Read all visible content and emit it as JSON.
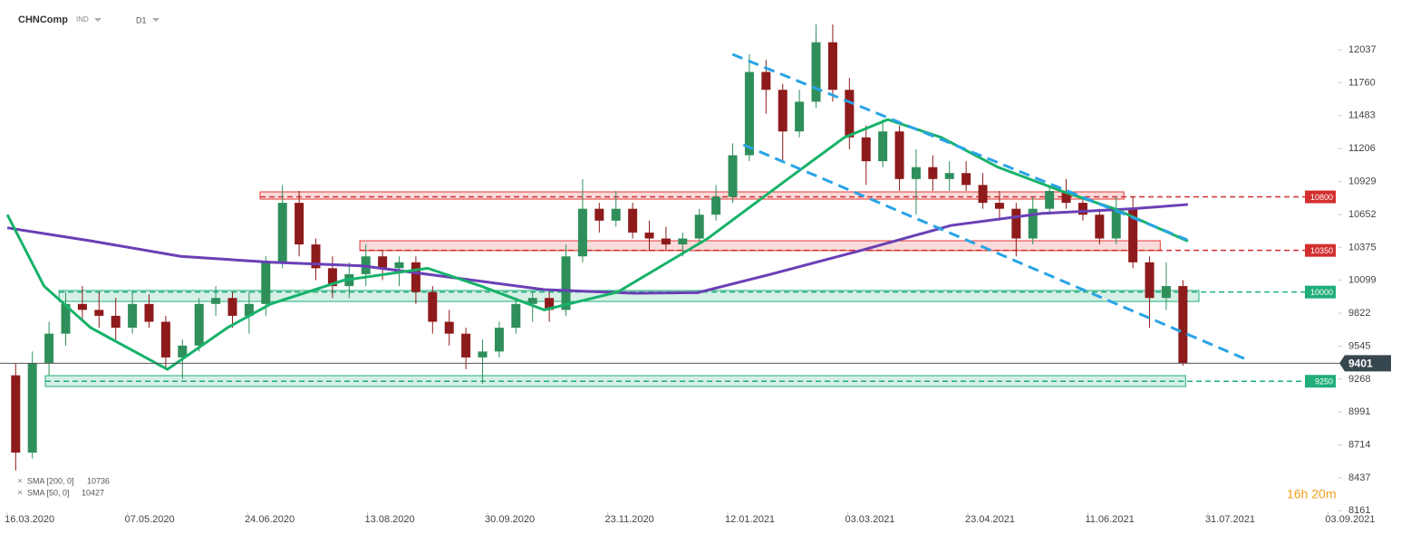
{
  "chart_data": {
    "type": "candlestick",
    "title": "CHNComp",
    "subtitle": "IND",
    "timeframe": "D1",
    "timer": "16h 20m",
    "xlim": [
      -2.2,
      398.6
    ],
    "xticks": [
      {
        "value": 0,
        "label": "16.03.2020"
      },
      {
        "value": 36,
        "label": "07.05.2020"
      },
      {
        "value": 72,
        "label": "24.06.2020"
      },
      {
        "value": 108,
        "label": "13.08.2020"
      },
      {
        "value": 144,
        "label": "30.09.2020"
      },
      {
        "value": 180,
        "label": "23.11.2020"
      },
      {
        "value": 216,
        "label": "12.01.2021"
      },
      {
        "value": 252,
        "label": "03.03.2021"
      },
      {
        "value": 288,
        "label": "23.04.2021"
      },
      {
        "value": 324,
        "label": "11.06.2021"
      },
      {
        "value": 360,
        "label": "31.07.2021"
      },
      {
        "value": 396,
        "label": "03.09.2021"
      }
    ],
    "ylim": [
      8156,
      12303
    ],
    "yticks": [
      12037,
      11760,
      11483,
      11206,
      10929,
      10652,
      10375,
      10099,
      9822,
      9545,
      9268,
      8991,
      8714,
      8437,
      8161
    ],
    "up_color": "#2f8f5b",
    "down_color": "#8e1b1b",
    "candles": {
      "x": [
        2.5,
        7.5,
        12.5,
        17.5,
        22.5,
        27.5,
        32.5,
        37.5,
        42.5,
        47.5,
        52.5,
        57.5,
        62.5,
        67.5,
        72.5,
        77.5,
        82.5,
        87.5,
        92.5,
        97.5,
        102.5,
        107.5,
        112.5,
        117.5,
        122.5,
        127.5,
        132.5,
        137.5,
        142.5,
        147.5,
        152.5,
        157.5,
        162.5,
        167.5,
        172.5,
        177.5,
        182.5,
        187.5,
        192.5,
        197.5,
        202.5,
        207.5,
        212.5,
        217.5,
        222.5,
        227.5,
        232.5,
        237.5,
        242.5,
        247.5,
        252.5,
        257.5,
        262.5,
        267.5,
        272.5,
        277.5,
        282.5,
        287.5,
        292.5,
        297.5,
        302.5,
        307.5,
        312.5,
        317.5,
        322.5,
        327.5,
        332.5,
        337.5,
        342.5,
        347.5,
        352.5
      ],
      "open": [
        9300,
        8650,
        9400,
        9650,
        9900,
        9850,
        9800,
        9700,
        9900,
        9750,
        9450,
        9550,
        9900,
        9950,
        9800,
        9900,
        10250,
        10750,
        10400,
        10200,
        10050,
        10150,
        10300,
        10200,
        10250,
        10000,
        9750,
        9650,
        9450,
        9500,
        9700,
        9900,
        9950,
        9850,
        10300,
        10700,
        10600,
        10700,
        10500,
        10450,
        10400,
        10450,
        10650,
        10800,
        11150,
        11850,
        11700,
        11350,
        11600,
        12100,
        11700,
        11300,
        11100,
        11350,
        10950,
        11050,
        10950,
        11000,
        10900,
        10750,
        10700,
        10450,
        10700,
        10850,
        10750,
        10650,
        10450,
        10700,
        10250,
        9950,
        10050
      ],
      "high": [
        9400,
        9500,
        9750,
        10000,
        10050,
        10000,
        9950,
        10000,
        9980,
        9800,
        9600,
        9950,
        10050,
        10000,
        10000,
        10300,
        10900,
        10850,
        10450,
        10300,
        10250,
        10400,
        10350,
        10300,
        10300,
        10050,
        9850,
        9700,
        9600,
        9750,
        9950,
        10000,
        10000,
        10400,
        10950,
        10750,
        10850,
        10750,
        10600,
        10550,
        10500,
        10700,
        10900,
        11250,
        12000,
        11950,
        11750,
        11700,
        12250,
        12250,
        11800,
        11400,
        11450,
        11400,
        11200,
        11150,
        11100,
        11100,
        11000,
        10850,
        10750,
        10800,
        10900,
        10950,
        10800,
        10700,
        10800,
        10800,
        10300,
        10250,
        10100
      ],
      "low": [
        8500,
        8600,
        9300,
        9550,
        9750,
        9700,
        9600,
        9650,
        9700,
        9350,
        9270,
        9500,
        9800,
        9700,
        9650,
        9800,
        10200,
        10300,
        10100,
        9950,
        9950,
        10050,
        10100,
        10050,
        9900,
        9650,
        9550,
        9350,
        9230,
        9450,
        9650,
        9750,
        9750,
        9800,
        10250,
        10500,
        10550,
        10450,
        10350,
        10350,
        10300,
        10400,
        10600,
        10750,
        11100,
        11500,
        11100,
        11300,
        11550,
        11600,
        11200,
        10900,
        11050,
        10850,
        10650,
        10850,
        10850,
        10850,
        10700,
        10600,
        10300,
        10400,
        10650,
        10700,
        10600,
        10400,
        10400,
        10200,
        9700,
        9850,
        9380
      ],
      "close": [
        8650,
        9400,
        9650,
        9900,
        9850,
        9800,
        9700,
        9900,
        9750,
        9450,
        9550,
        9900,
        9950,
        9800,
        9900,
        10250,
        10750,
        10400,
        10200,
        10050,
        10150,
        10300,
        10200,
        10250,
        10000,
        9750,
        9650,
        9450,
        9500,
        9700,
        9900,
        9950,
        9850,
        10300,
        10700,
        10600,
        10700,
        10500,
        10450,
        10400,
        10450,
        10650,
        10800,
        11150,
        11850,
        11700,
        11350,
        11600,
        12100,
        11700,
        11300,
        11100,
        11350,
        10950,
        11050,
        10950,
        11000,
        10900,
        10750,
        10700,
        10450,
        10700,
        10850,
        10750,
        10650,
        10450,
        10700,
        10250,
        9950,
        10050,
        9401
      ]
    },
    "series": [
      {
        "name": "SMA [200, 0]",
        "color": "#6a3fb5",
        "x": [
          0,
          25,
          52,
          79,
          106.5,
          134,
          161,
          188,
          207,
          229,
          256,
          283,
          310,
          337.5,
          354
        ],
        "values": [
          10540,
          10430,
          10300,
          10250,
          10220,
          10120,
          10020,
          9990,
          9995,
          10150,
          10350,
          10560,
          10660,
          10700,
          10736
        ]
      },
      {
        "name": "SMA [50, 0]",
        "color": "#17b26a",
        "x": [
          0,
          11,
          25,
          48,
          66,
          79,
          101,
          126,
          142,
          161,
          183,
          210,
          234,
          251,
          264,
          280,
          297,
          316,
          332,
          354
        ],
        "values": [
          10650,
          10050,
          9700,
          9350,
          9700,
          9900,
          10100,
          10200,
          10050,
          9850,
          10000,
          10450,
          10950,
          11300,
          11450,
          11300,
          11050,
          10850,
          10700,
          10427
        ]
      }
    ],
    "zones": [
      {
        "x": [
          75.8,
          334.8
        ],
        "y": [
          10781,
          10842
        ],
        "color": "#e53935"
      },
      {
        "x": [
          105.7,
          345.7
        ],
        "y": [
          10348,
          10431
        ],
        "color": "#e53935"
      },
      {
        "x": [
          15.5,
          357.3
        ],
        "y": [
          9921,
          10013
        ],
        "color": "#1fae7a"
      },
      {
        "x": [
          11.4,
          353.3
        ],
        "y": [
          9206,
          9297
        ],
        "color": "#1fae7a"
      }
    ],
    "levels": [
      {
        "value": 10800,
        "color": "#d32f2f"
      },
      {
        "value": 10350,
        "color": "#d32f2f"
      },
      {
        "value": 10000,
        "color": "#1fae7a"
      },
      {
        "value": 9250,
        "color": "#1fae7a"
      }
    ],
    "trendlines": [
      {
        "x": [
          217.4,
          353.8
        ],
        "y": [
          11999,
          10439
        ],
        "color": "#29a3e6"
      },
      {
        "x": [
          220.7,
          371.5
        ],
        "y": [
          11238,
          9434
        ],
        "color": "#29a3e6"
      }
    ]
  }
}
